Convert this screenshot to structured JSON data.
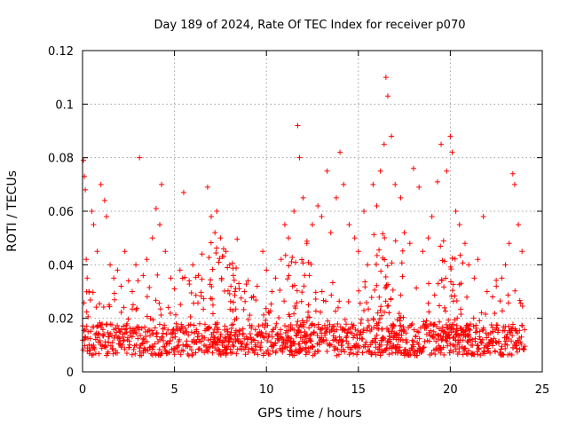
{
  "chart_data": {
    "type": "scatter",
    "title": "Day 189 of 2024, Rate Of TEC Index for receiver p070",
    "xlabel": "GPS time / hours",
    "ylabel": "ROTI / TECUs",
    "xlim": [
      0,
      25
    ],
    "ylim": [
      0,
      0.12
    ],
    "xticks": [
      0,
      5,
      10,
      15,
      20,
      25
    ],
    "xtick_labels": [
      "0",
      "5",
      "10",
      "15",
      "20",
      "25"
    ],
    "yticks": [
      0,
      0.02,
      0.04,
      0.06,
      0.08,
      0.1,
      0.12
    ],
    "ytick_labels": [
      "0",
      "0.02",
      "0.04",
      "0.06",
      "0.08",
      "0.1",
      "0.12"
    ],
    "grid": true,
    "marker": "+",
    "color": "#ff0000",
    "series": [
      {
        "name": "ROTI",
        "x": [
          0.05,
          0.1,
          0.15,
          0.2,
          0.25,
          0.35,
          0.5,
          0.6,
          0.8,
          1.0,
          1.2,
          1.3,
          1.5,
          1.7,
          1.9,
          2.1,
          2.3,
          2.5,
          2.7,
          2.9,
          3.1,
          3.3,
          3.5,
          3.8,
          4.0,
          4.2,
          4.3,
          4.5,
          4.8,
          5.0,
          5.3,
          5.5,
          5.8,
          6.0,
          6.3,
          6.5,
          6.8,
          7.0,
          7.2,
          7.3,
          7.5,
          7.8,
          8.0,
          8.2,
          8.5,
          8.8,
          9.0,
          9.3,
          9.5,
          9.8,
          10.0,
          10.3,
          10.5,
          10.8,
          11.0,
          11.2,
          11.5,
          11.7,
          11.8,
          12.0,
          12.2,
          12.5,
          12.8,
          13.0,
          13.3,
          13.5,
          13.8,
          14.0,
          14.2,
          14.5,
          14.8,
          15.0,
          15.3,
          15.5,
          15.8,
          16.0,
          16.2,
          16.4,
          16.5,
          16.6,
          16.8,
          17.0,
          17.3,
          17.5,
          17.8,
          18.0,
          18.3,
          18.5,
          18.8,
          19.0,
          19.3,
          19.5,
          19.8,
          20.0,
          20.1,
          20.3,
          20.5,
          20.8,
          21.0,
          21.3,
          21.5,
          21.8,
          22.0,
          22.3,
          22.5,
          22.8,
          23.0,
          23.2,
          23.4,
          23.5,
          23.7,
          23.9,
          0.1,
          0.3,
          0.6,
          0.9,
          1.4,
          2.2,
          3.1,
          4.2,
          5.1,
          6.2,
          7.1,
          7.6,
          8.3,
          9.2,
          10.3,
          11.3,
          12.1,
          13.1,
          14.1,
          15.1,
          16.3,
          17.2,
          18.2,
          19.1,
          20.2,
          21.2,
          22.2,
          23.1,
          23.6
        ],
        "y": [
          0.079,
          0.073,
          0.068,
          0.042,
          0.035,
          0.03,
          0.06,
          0.055,
          0.045,
          0.07,
          0.064,
          0.058,
          0.04,
          0.035,
          0.038,
          0.032,
          0.045,
          0.034,
          0.03,
          0.04,
          0.08,
          0.036,
          0.042,
          0.05,
          0.061,
          0.055,
          0.07,
          0.045,
          0.035,
          0.031,
          0.038,
          0.067,
          0.034,
          0.04,
          0.036,
          0.044,
          0.069,
          0.058,
          0.052,
          0.06,
          0.05,
          0.045,
          0.04,
          0.036,
          0.033,
          0.03,
          0.034,
          0.028,
          0.032,
          0.045,
          0.038,
          0.03,
          0.035,
          0.042,
          0.055,
          0.05,
          0.06,
          0.092,
          0.08,
          0.065,
          0.048,
          0.055,
          0.062,
          0.058,
          0.075,
          0.052,
          0.065,
          0.082,
          0.07,
          0.055,
          0.05,
          0.045,
          0.06,
          0.04,
          0.07,
          0.062,
          0.075,
          0.085,
          0.11,
          0.103,
          0.088,
          0.07,
          0.065,
          0.052,
          0.048,
          0.076,
          0.069,
          0.045,
          0.05,
          0.058,
          0.071,
          0.085,
          0.075,
          0.088,
          0.082,
          0.06,
          0.055,
          0.048,
          0.04,
          0.035,
          0.042,
          0.058,
          0.03,
          0.028,
          0.032,
          0.035,
          0.04,
          0.048,
          0.074,
          0.07,
          0.055,
          0.045,
          0.012,
          0.015,
          0.01,
          0.014,
          0.011,
          0.013,
          0.009,
          0.012,
          0.016,
          0.011,
          0.013,
          0.01,
          0.014,
          0.012,
          0.015,
          0.011,
          0.013,
          0.012,
          0.01,
          0.014,
          0.016,
          0.012,
          0.011,
          0.015,
          0.013,
          0.01,
          0.012,
          0.014,
          0.011
        ]
      }
    ]
  }
}
